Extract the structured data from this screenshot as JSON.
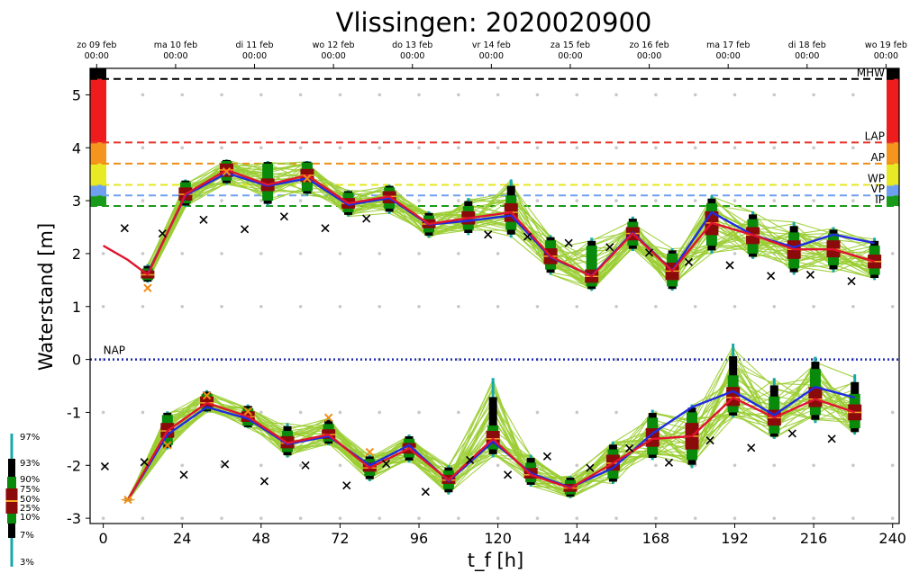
{
  "chart_data": {
    "type": "line",
    "title": "Vlissingen: 2020020900",
    "xlabel": "t_f [h]",
    "ylabel": "Waterstand [m]",
    "xlim": [
      -4,
      242
    ],
    "ylim": [
      -3.1,
      5.5
    ],
    "xticks": [
      0,
      24,
      48,
      72,
      96,
      120,
      144,
      168,
      192,
      216,
      240
    ],
    "yticks": [
      -3,
      -2,
      -1,
      0,
      1,
      2,
      3,
      4,
      5
    ],
    "date_ticks": [
      {
        "x": -2,
        "day": "zo 09 feb",
        "time": "00:00"
      },
      {
        "x": 22,
        "day": "ma 10 feb",
        "time": "00:00"
      },
      {
        "x": 46,
        "day": "di 11 feb",
        "time": "00:00"
      },
      {
        "x": 70,
        "day": "wo 12 feb",
        "time": "00:00"
      },
      {
        "x": 94,
        "day": "do 13 feb",
        "time": "00:00"
      },
      {
        "x": 118,
        "day": "vr 14 feb",
        "time": "00:00"
      },
      {
        "x": 142,
        "day": "za 15 feb",
        "time": "00:00"
      },
      {
        "x": 166,
        "day": "zo 16 feb",
        "time": "00:00"
      },
      {
        "x": 190,
        "day": "ma 17 feb",
        "time": "00:00"
      },
      {
        "x": 214,
        "day": "di 18 feb",
        "time": "00:00"
      },
      {
        "x": 238,
        "day": "wo 19 feb",
        "time": "00:00"
      }
    ],
    "thresholds": [
      {
        "name": "MHW",
        "value": 5.3,
        "color": "#000000"
      },
      {
        "name": "LAP",
        "value": 4.1,
        "color": "#e8342a"
      },
      {
        "name": "AP",
        "value": 3.7,
        "color": "#f08c14"
      },
      {
        "name": "WP",
        "value": 3.3,
        "color": "#e6e61e"
      },
      {
        "name": "VP",
        "value": 3.1,
        "color": "#6fa0f0"
      },
      {
        "name": "IP",
        "value": 2.9,
        "color": "#1a9a1a"
      }
    ],
    "nap": {
      "name": "NAP",
      "value": 0,
      "color": "#1f2bb5"
    },
    "color_bands": [
      {
        "from": 4.1,
        "to": 5.3,
        "color": "#ee1c1c"
      },
      {
        "from": 3.7,
        "to": 4.1,
        "color": "#f5951d"
      },
      {
        "from": 3.3,
        "to": 3.7,
        "color": "#e7ea24"
      },
      {
        "from": 3.1,
        "to": 3.3,
        "color": "#6fa0f0"
      },
      {
        "from": 2.9,
        "to": 3.1,
        "color": "#1a9a1a"
      }
    ],
    "high_water": {
      "x": [
        13.5,
        25,
        37.5,
        50,
        62,
        74.5,
        87,
        99,
        111,
        124,
        136,
        148.5,
        161,
        173,
        185,
        197.5,
        210,
        222,
        234.5
      ],
      "median": [
        1.6,
        3.12,
        3.58,
        3.3,
        3.48,
        2.95,
        3.08,
        2.56,
        2.67,
        2.78,
        1.95,
        1.57,
        2.38,
        1.67,
        2.58,
        2.35,
        2.08,
        2.08,
        1.85
      ],
      "mean": [
        1.62,
        3.1,
        3.52,
        3.28,
        3.42,
        2.92,
        3.05,
        2.55,
        2.62,
        2.72,
        1.93,
        1.58,
        2.4,
        1.68,
        2.78,
        2.35,
        2.12,
        2.36,
        2.2
      ],
      "p25": [
        1.53,
        3.0,
        3.45,
        3.18,
        3.35,
        2.85,
        2.95,
        2.48,
        2.55,
        2.6,
        1.8,
        1.45,
        2.25,
        1.5,
        2.35,
        2.18,
        1.9,
        1.93,
        1.72
      ],
      "p75": [
        1.68,
        3.25,
        3.7,
        3.42,
        3.6,
        3.05,
        3.18,
        2.65,
        2.8,
        2.95,
        2.1,
        1.7,
        2.5,
        1.83,
        2.8,
        2.5,
        2.25,
        2.25,
        1.98
      ],
      "p10": [
        1.5,
        2.95,
        3.38,
        3.0,
        3.18,
        2.78,
        2.85,
        2.4,
        2.45,
        2.45,
        1.7,
        1.38,
        2.15,
        1.38,
        2.15,
        2.0,
        1.72,
        1.78,
        1.6
      ],
      "p90": [
        1.72,
        3.35,
        3.75,
        3.7,
        3.72,
        3.15,
        3.25,
        2.72,
        2.9,
        3.1,
        2.25,
        2.15,
        2.6,
        2.0,
        2.95,
        2.65,
        2.4,
        2.38,
        2.15
      ],
      "p3": [
        1.45,
        2.88,
        3.3,
        2.9,
        3.1,
        2.7,
        2.75,
        2.3,
        2.35,
        2.3,
        1.6,
        1.3,
        2.05,
        1.3,
        2.0,
        1.9,
        1.6,
        1.65,
        1.5
      ],
      "p97": [
        1.8,
        3.4,
        3.78,
        3.75,
        3.75,
        3.2,
        3.3,
        2.8,
        3.05,
        3.4,
        2.35,
        2.3,
        2.7,
        2.1,
        3.1,
        2.8,
        2.6,
        2.5,
        2.3
      ],
      "astro": [
        2.48,
        2.38,
        2.64,
        2.46,
        2.7,
        2.48,
        2.66,
        null,
        null,
        2.36,
        2.32,
        2.2,
        2.12,
        2.02,
        1.84,
        1.78,
        1.58,
        1.6,
        1.48
      ]
    },
    "low_water": {
      "x": [
        7.5,
        19.5,
        31.5,
        44,
        56,
        68.5,
        81,
        93,
        105,
        118.5,
        130,
        142,
        155,
        167,
        179,
        191.5,
        204,
        216.5,
        228.5
      ],
      "median": [
        -2.65,
        -1.35,
        -0.82,
        -1.08,
        -1.58,
        -1.42,
        -2.05,
        -1.68,
        -2.28,
        -1.5,
        -2.18,
        -2.43,
        -1.96,
        -1.5,
        -1.45,
        -0.72,
        -1.1,
        -0.75,
        -1.0
      ],
      "mean": [
        -2.65,
        -1.42,
        -0.9,
        -1.12,
        -1.6,
        -1.45,
        -2.0,
        -1.62,
        -2.3,
        -1.55,
        -2.15,
        -2.42,
        -2.05,
        -1.4,
        -0.9,
        -0.6,
        -1.05,
        -0.52,
        -0.72
      ],
      "p25": [
        -2.65,
        -1.48,
        -0.9,
        -1.18,
        -1.68,
        -1.5,
        -2.12,
        -1.78,
        -2.35,
        -1.6,
        -2.25,
        -2.5,
        -2.1,
        -1.65,
        -1.7,
        -0.88,
        -1.25,
        -0.9,
        -1.15
      ],
      "p75": [
        -2.65,
        -1.2,
        -0.7,
        -0.98,
        -1.45,
        -1.32,
        -1.95,
        -1.58,
        -2.18,
        -1.35,
        -2.05,
        -2.35,
        -1.8,
        -1.3,
        -1.2,
        -0.52,
        -0.95,
        -0.52,
        -0.85
      ],
      "p10": [
        -2.65,
        -1.62,
        -0.95,
        -1.25,
        -1.75,
        -1.55,
        -2.2,
        -1.85,
        -2.45,
        -1.7,
        -2.32,
        -2.55,
        -2.25,
        -1.8,
        -1.9,
        -1.0,
        -1.4,
        -1.05,
        -1.3
      ],
      "p90": [
        -2.65,
        -1.05,
        -0.65,
        -0.92,
        -1.35,
        -1.22,
        -1.88,
        -1.5,
        -2.1,
        -1.25,
        -1.95,
        -2.28,
        -1.7,
        -1.1,
        -1.0,
        -0.3,
        -0.7,
        -0.18,
        -0.65
      ],
      "p3": [
        -2.68,
        -1.7,
        -1.0,
        -1.3,
        -1.85,
        -1.62,
        -2.3,
        -1.95,
        -2.55,
        -1.85,
        -2.4,
        -2.62,
        -2.35,
        -1.9,
        -2.05,
        -1.1,
        -1.5,
        -1.2,
        -1.42
      ],
      "p97": [
        -2.62,
        -0.98,
        -0.58,
        -0.85,
        -1.2,
        -1.1,
        -1.8,
        -1.42,
        -2.0,
        -0.35,
        -1.8,
        -2.2,
        -1.55,
        -0.95,
        -0.85,
        0.3,
        -0.35,
        0.05,
        -0.28
      ],
      "astro": [
        -2.02,
        -1.94,
        -2.18,
        -1.98,
        -2.3,
        -2.0,
        -2.38,
        -1.97,
        -2.5,
        -1.9,
        -2.18,
        -1.83,
        -2.05,
        -1.68,
        -1.95,
        -1.53,
        -1.67,
        -1.4,
        -1.5
      ]
    },
    "observed": {
      "x": [
        0,
        7.5,
        13.5
      ],
      "y": [
        2.15,
        1.88,
        1.6
      ]
    },
    "observed_markers": [
      {
        "x": 13.5,
        "y": 1.35
      },
      {
        "x": 7.5,
        "y": -2.65
      },
      {
        "x": 19.5,
        "y": -1.62
      },
      {
        "x": 31.5,
        "y": -0.68
      },
      {
        "x": 44,
        "y": -0.98
      },
      {
        "x": 68.5,
        "y": -1.1
      },
      {
        "x": 81,
        "y": -1.75
      },
      {
        "x": 62,
        "y": 3.42
      },
      {
        "x": 37.5,
        "y": 3.55
      }
    ],
    "colors": {
      "ensemble": "#9acd32",
      "mean": "#1f2be0",
      "median": "#e0142d",
      "box_inner": "#8b0a0a",
      "box_outer": "#0a8a0a",
      "box_tail": "#000000",
      "whisker": "#17a8a8",
      "grid": "#c8c8c8",
      "observed_marker": "#f08c14"
    },
    "legend": {
      "placement": "left-margin",
      "labels": [
        "97%",
        "93%",
        "90%",
        "75%",
        "50%",
        "25%",
        "10%",
        "7%",
        "3%"
      ]
    }
  }
}
